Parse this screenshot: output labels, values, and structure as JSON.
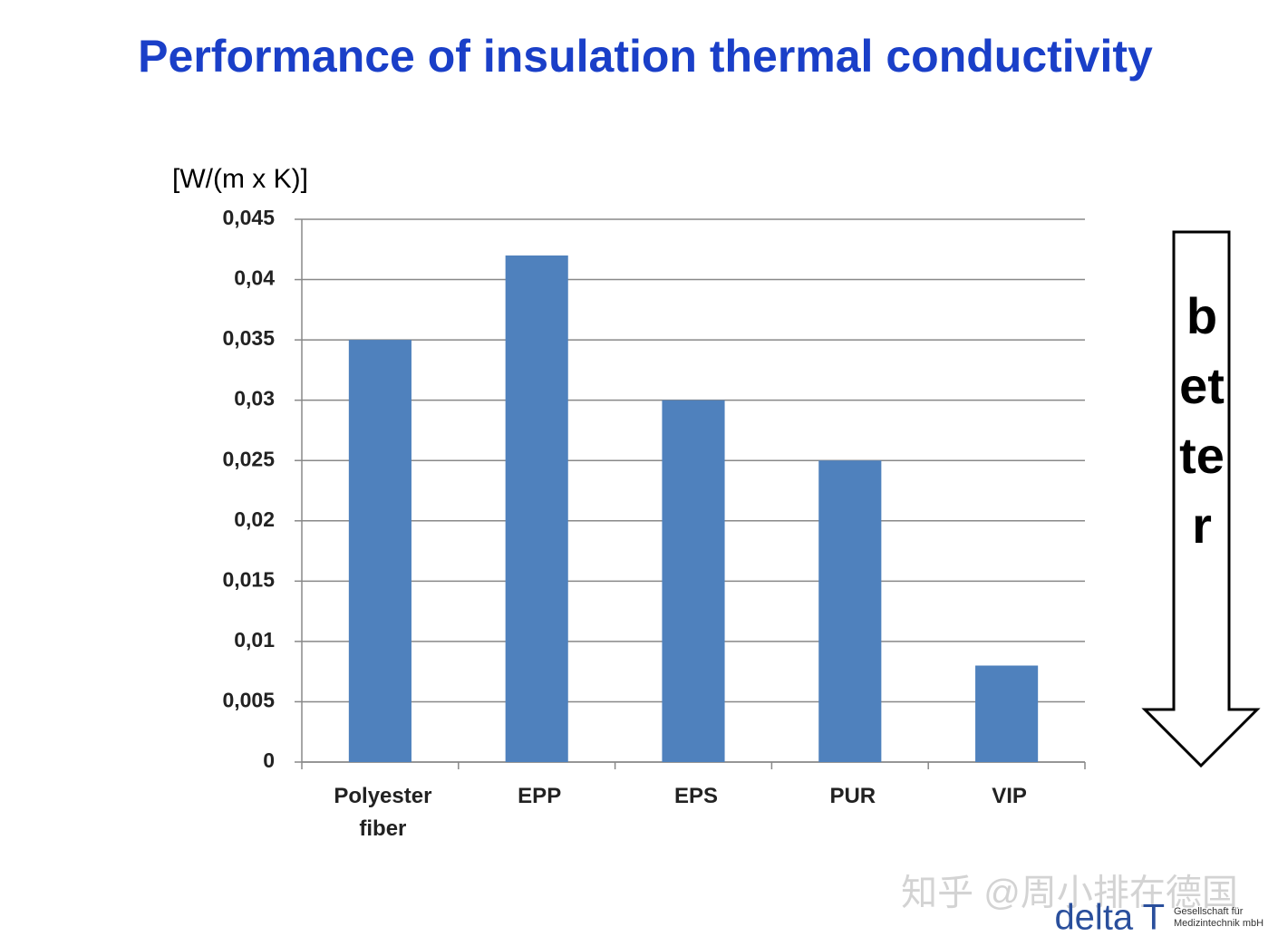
{
  "chart_data": {
    "type": "bar",
    "title": "Performance of insulation thermal conductivity",
    "y_axis_label": "[W/(m x K)]",
    "categories": [
      "Polyester fiber",
      "EPP",
      "EPS",
      "PUR",
      "VIP"
    ],
    "values": [
      0.035,
      0.042,
      0.03,
      0.025,
      0.008
    ],
    "color": "#4f81bd",
    "ylim": [
      0,
      0.045
    ],
    "yticks": [
      0,
      {
        "value": 0.005,
        "label": "0,005"
      },
      {
        "value": 0.01,
        "label": "0,01"
      },
      {
        "value": 0.015,
        "label": "0,015"
      },
      {
        "value": 0.02,
        "label": "0,02"
      },
      {
        "value": 0.025,
        "label": "0,025"
      },
      {
        "value": 0.03,
        "label": "0,03"
      },
      {
        "value": 0.035,
        "label": "0,035"
      },
      {
        "value": 0.04,
        "label": "0,04"
      },
      {
        "value": 0.045,
        "label": "0,045"
      }
    ],
    "grid": true,
    "annotation": "better",
    "watermark": "知乎 @周小排在德国",
    "logo": "delta T",
    "logo_subtitle": "Gesellschaft für Medizintechnik mbH"
  }
}
